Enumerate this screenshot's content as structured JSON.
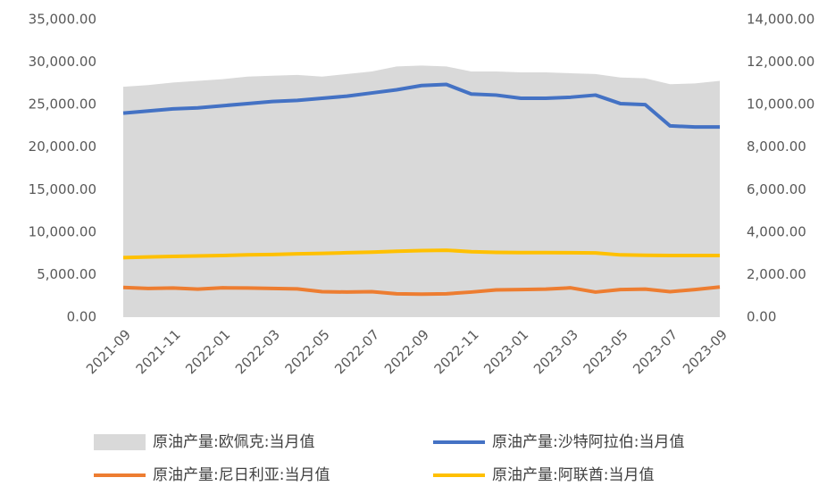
{
  "chart_data": {
    "type": "line",
    "categories": [
      "2021-09",
      null,
      "2021-11",
      null,
      "2022-01",
      null,
      "2022-03",
      null,
      "2022-05",
      null,
      "2022-07",
      null,
      "2022-09",
      null,
      "2022-11",
      null,
      "2023-01",
      null,
      "2023-03",
      null,
      "2023-05",
      null,
      "2023-07",
      null,
      "2023-09"
    ],
    "series": [
      {
        "name": "原油产量:欧佩克:当月值",
        "color": "#d9d9d9",
        "kind": "area",
        "values": [
          27100,
          27300,
          27600,
          27800,
          28000,
          28300,
          28400,
          28500,
          28300,
          28600,
          28900,
          29500,
          29600,
          29500,
          28900,
          28900,
          28800,
          28800,
          28700,
          28600,
          28200,
          28100,
          27400,
          27500,
          27800
        ]
      },
      {
        "name": "原油产量:沙特阿拉伯:当月值",
        "color": "#4472c4",
        "axis": "y2",
        "values": [
          9600,
          9700,
          9800,
          9850,
          9950,
          10050,
          10150,
          10200,
          10300,
          10400,
          10550,
          10700,
          10900,
          10950,
          10500,
          10450,
          10300,
          10300,
          10350,
          10450,
          10050,
          10000,
          9000,
          8950,
          8950
        ]
      },
      {
        "name": "原油产量:尼日利亚:当月值",
        "color": "#ed7d31",
        "axis": "y2",
        "values": [
          1400,
          1350,
          1370,
          1320,
          1380,
          1370,
          1350,
          1330,
          1200,
          1180,
          1200,
          1100,
          1080,
          1100,
          1180,
          1280,
          1300,
          1320,
          1380,
          1180,
          1300,
          1320,
          1200,
          1300,
          1420
        ]
      },
      {
        "name": "原油产量:阿联酋:当月值",
        "color": "#ffc000",
        "axis": "y2",
        "values": [
          2800,
          2830,
          2860,
          2880,
          2900,
          2930,
          2950,
          2980,
          3000,
          3030,
          3060,
          3100,
          3130,
          3150,
          3080,
          3050,
          3040,
          3040,
          3030,
          3020,
          2930,
          2910,
          2900,
          2900,
          2900
        ]
      }
    ],
    "ylim": [
      0,
      35000
    ],
    "yticks": [
      {
        "value": 0,
        "label": "0.00"
      },
      {
        "value": 5000,
        "label": "5,000.00"
      },
      {
        "value": 10000,
        "label": "10,000.00"
      },
      {
        "value": 15000,
        "label": "15,000.00"
      },
      {
        "value": 20000,
        "label": "20,000.00"
      },
      {
        "value": 25000,
        "label": "25,000.00"
      },
      {
        "value": 30000,
        "label": "30,000.00"
      },
      {
        "value": 35000,
        "label": "35,000.00"
      }
    ],
    "y2lim": [
      0,
      14000
    ],
    "y2ticks": [
      {
        "value": 0,
        "label": "0.00"
      },
      {
        "value": 2000,
        "label": "2,000.00"
      },
      {
        "value": 4000,
        "label": "4,000.00"
      },
      {
        "value": 6000,
        "label": "6,000.00"
      },
      {
        "value": 8000,
        "label": "8,000.00"
      },
      {
        "value": 10000,
        "label": "10,000.00"
      },
      {
        "value": 12000,
        "label": "12,000.00"
      },
      {
        "value": 14000,
        "label": "14,000.00"
      }
    ],
    "legend": "bottom"
  }
}
